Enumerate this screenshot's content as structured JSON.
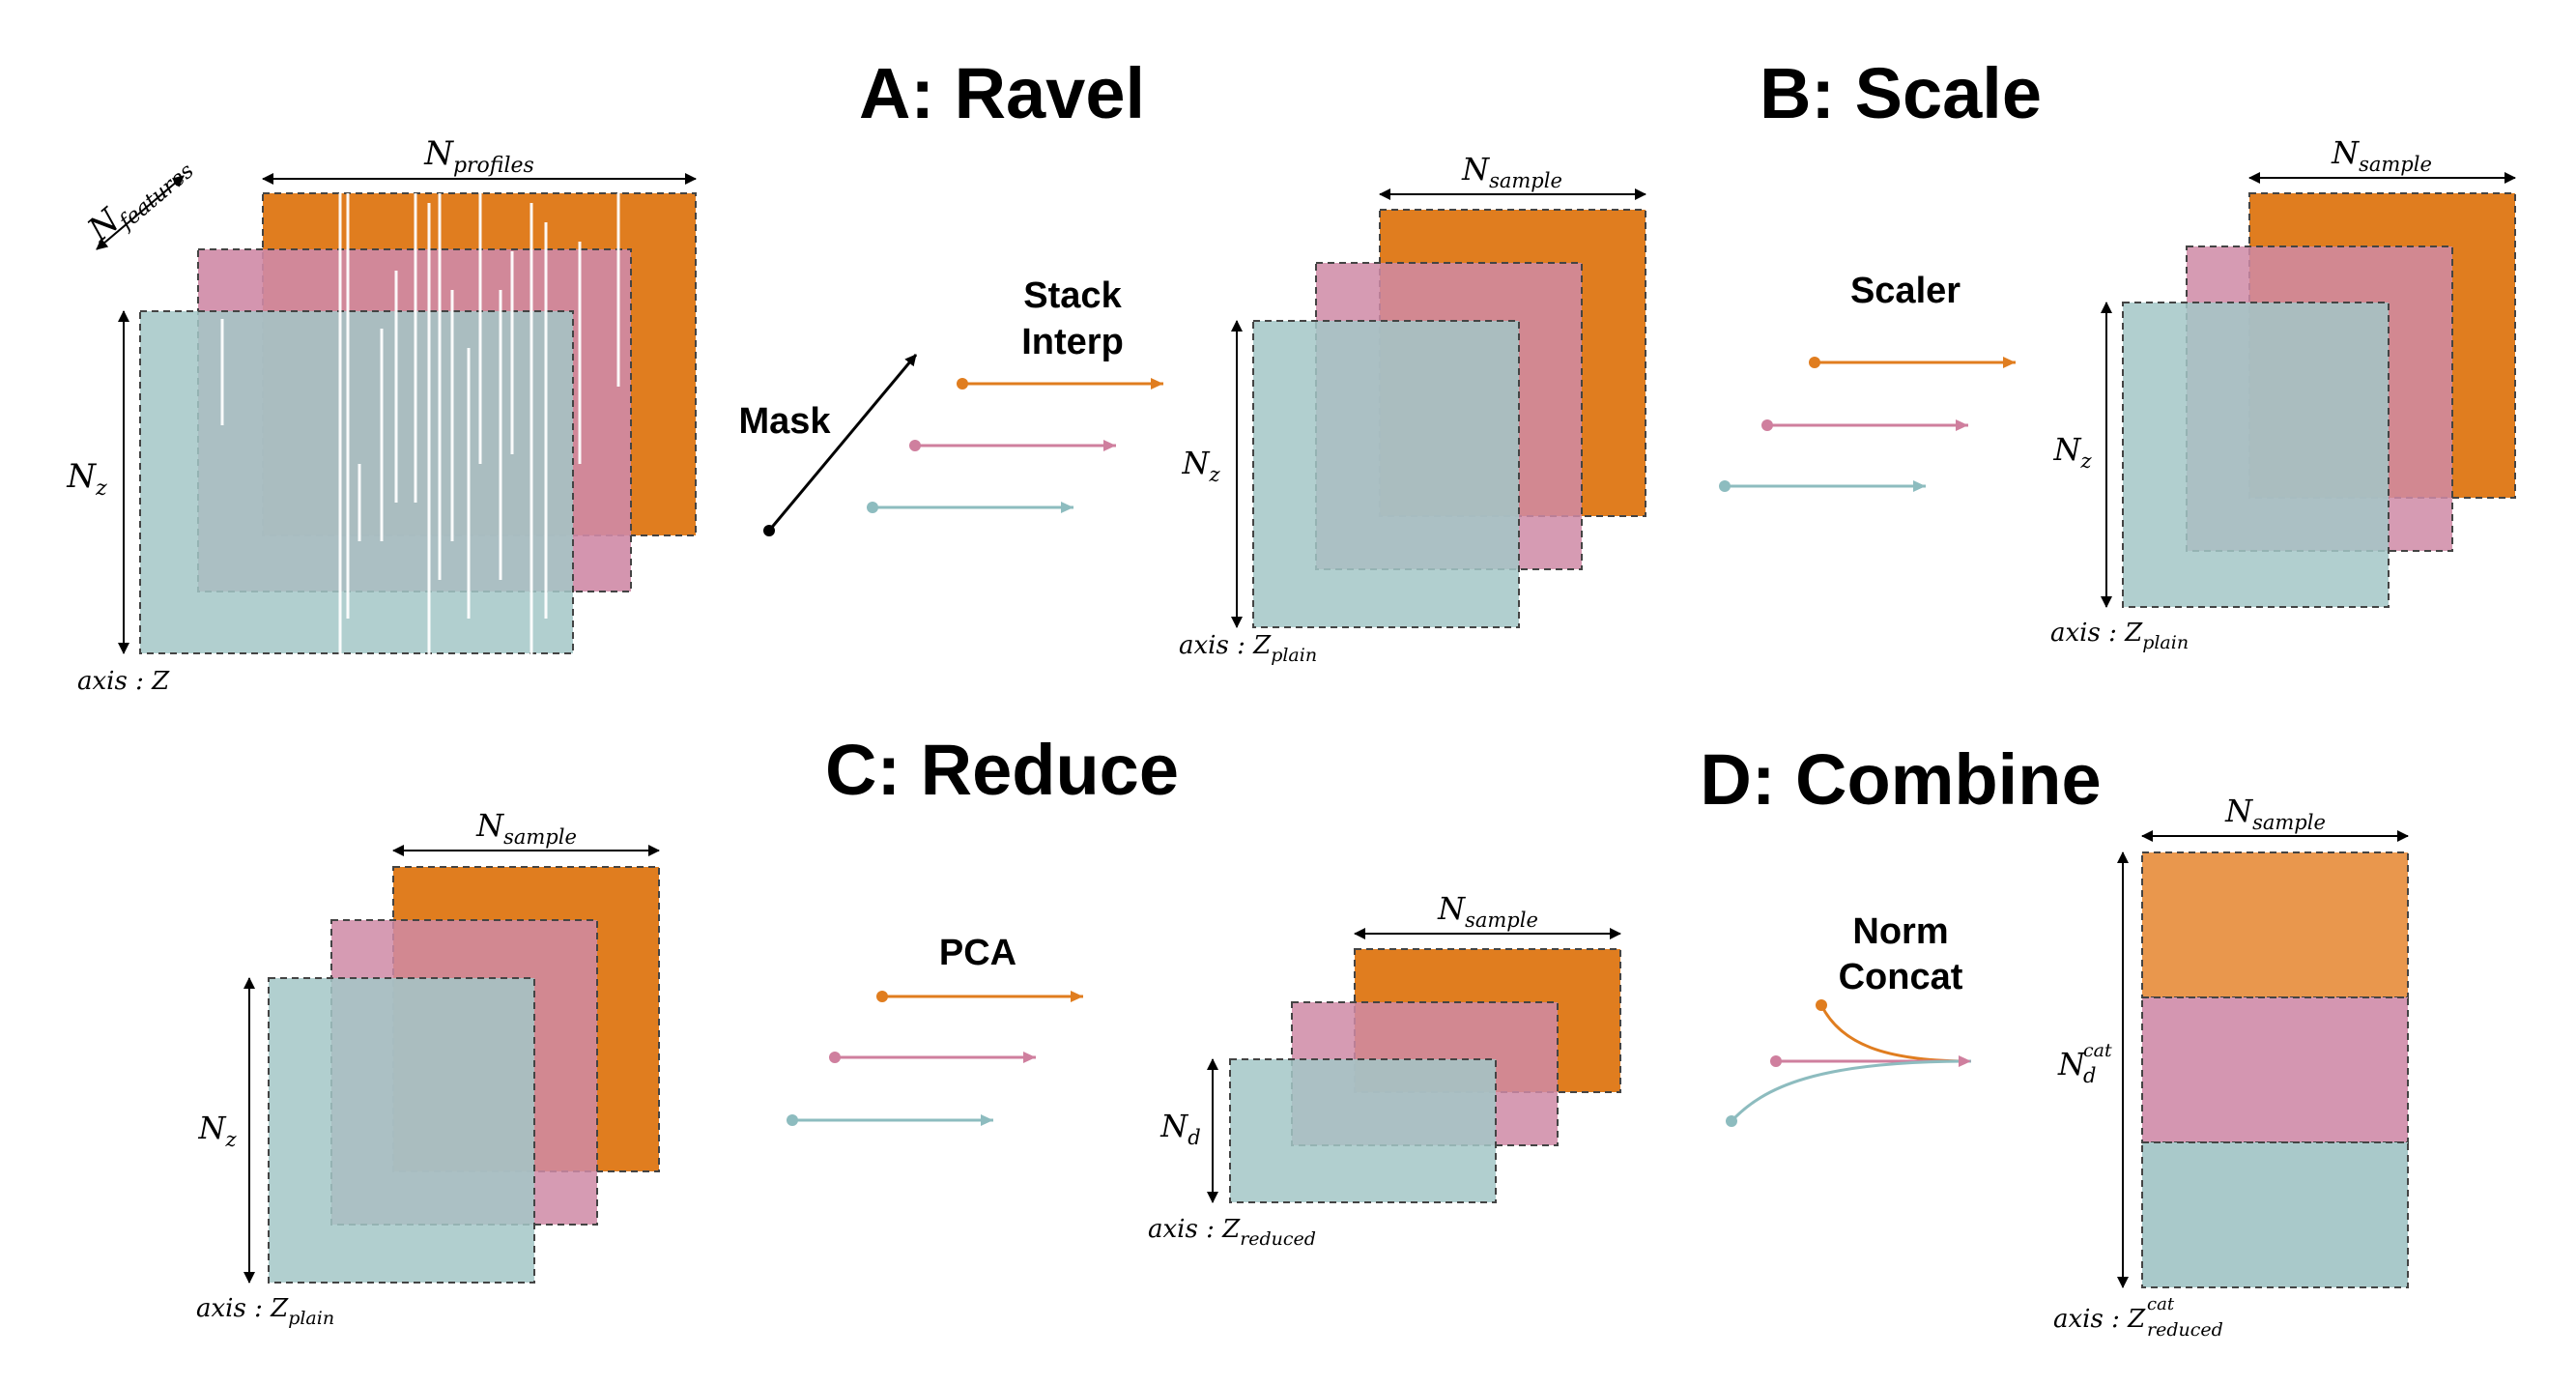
{
  "colors": {
    "orange": "#e07d1f",
    "pink": "#cf8aa6",
    "teal": "#a3c7c7",
    "dash": "#444444"
  },
  "panels": {
    "a": {
      "title": "A: Ravel",
      "input_width_label": {
        "base": "N",
        "sub": "profiles"
      },
      "input_depth_label": {
        "base": "N",
        "sub": "features"
      },
      "input_height_label": {
        "base": "N",
        "sub": "z"
      },
      "input_axis_label": {
        "text": "axis : Z"
      },
      "mask_label": "Mask",
      "op_label": [
        "Stack",
        "Interp"
      ],
      "output_width_label": {
        "base": "N",
        "sub": "sample"
      },
      "output_height_label": {
        "base": "N",
        "sub": "z"
      },
      "output_axis_label": {
        "text": "axis : Z",
        "sub": "plain"
      }
    },
    "b": {
      "title": "B: Scale",
      "op_label": "Scaler",
      "output_width_label": {
        "base": "N",
        "sub": "sample"
      },
      "output_height_label": {
        "base": "N",
        "sub": "z"
      },
      "output_axis_label": {
        "text": "axis : Z",
        "sub": "plain"
      }
    },
    "c": {
      "title": "C: Reduce",
      "input_width_label": {
        "base": "N",
        "sub": "sample"
      },
      "input_height_label": {
        "base": "N",
        "sub": "z"
      },
      "input_axis_label": {
        "text": "axis : Z",
        "sub": "plain"
      },
      "op_label": "PCA",
      "output_width_label": {
        "base": "N",
        "sub": "sample"
      },
      "output_height_label": {
        "base": "N",
        "sub": "d"
      },
      "output_axis_label": {
        "text": "axis : Z",
        "sub": "reduced"
      }
    },
    "d": {
      "title": "D: Combine",
      "op_label": [
        "Norm",
        "Concat"
      ],
      "output_width_label": {
        "base": "N",
        "sub": "sample"
      },
      "output_height_label": {
        "base": "N",
        "sub": "d",
        "sup": "cat"
      },
      "output_axis_label": {
        "text": "axis : Z",
        "sub": "reduced",
        "sup": "cat"
      }
    }
  }
}
